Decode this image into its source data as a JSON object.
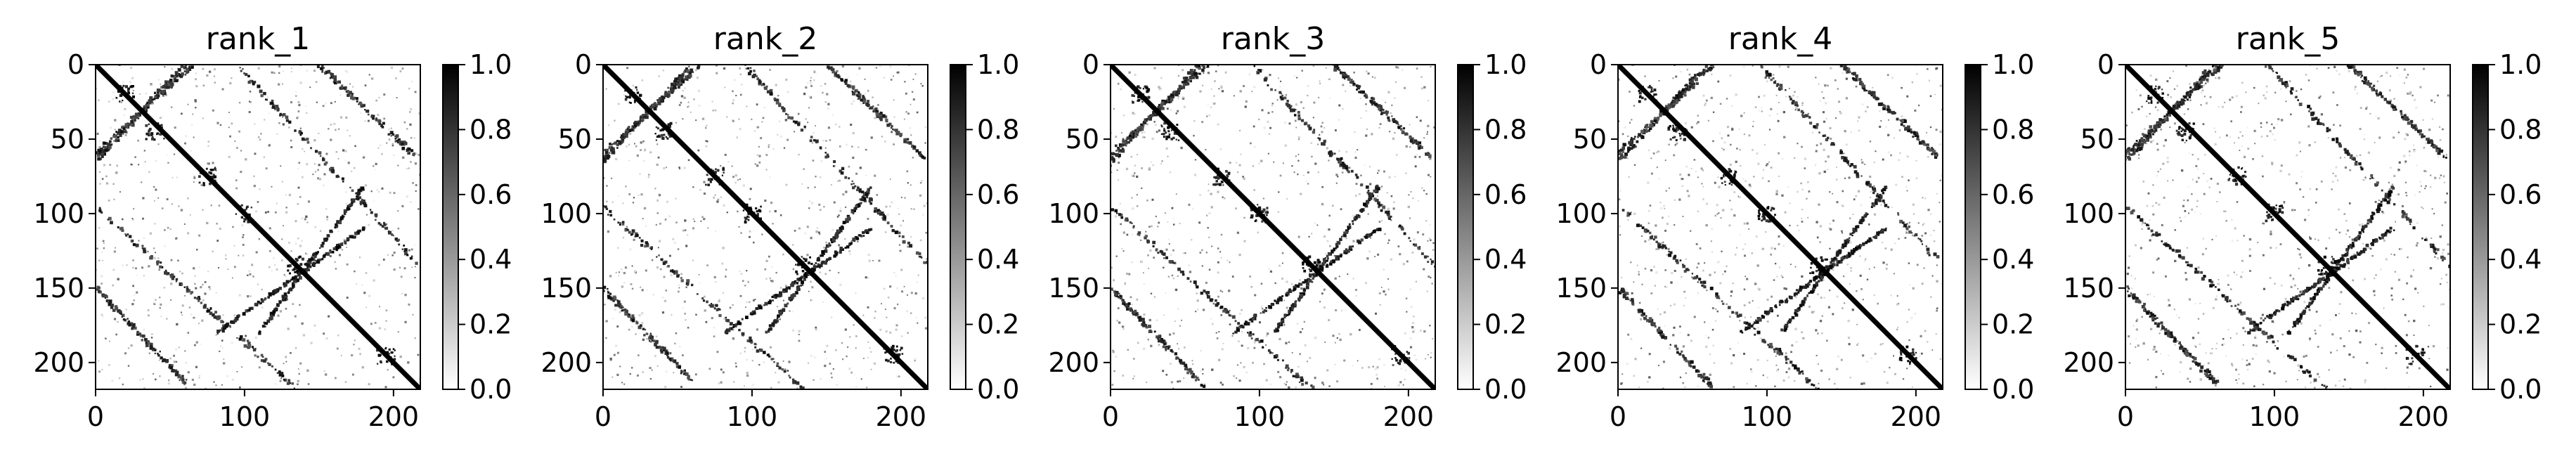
{
  "chart_data": [
    {
      "type": "heatmap",
      "title": "rank_1",
      "xlim": [
        0,
        218
      ],
      "ylim": [
        218,
        0
      ],
      "x_ticks": [
        0,
        100,
        200
      ],
      "y_ticks": [
        0,
        50,
        100,
        150,
        200
      ],
      "colorbar": {
        "min": 0.0,
        "max": 1.0,
        "ticks": [
          "0.0",
          "0.2",
          "0.4",
          "0.6",
          "0.8",
          "1.0"
        ]
      },
      "colormap": "gray_r",
      "grid": false,
      "structure": {
        "main_diagonal": {
          "from": [
            0,
            0
          ],
          "to": [
            218,
            218
          ]
        },
        "anti_diagonal_segments": [
          [
            [
              82,
              180
            ],
            [
              180,
              110
            ]
          ]
        ],
        "parallel_bands": [
          [
            [
              0,
              150
            ],
            [
              62,
              215
            ]
          ],
          [
            [
              95,
              0
            ],
            [
              218,
              135
            ]
          ],
          [
            [
              0,
              65
            ],
            [
              60,
              0
            ]
          ]
        ],
        "clusters": [
          [
            20,
            20
          ],
          [
            40,
            45
          ],
          [
            75,
            75
          ],
          [
            100,
            100
          ],
          [
            135,
            135
          ],
          [
            195,
            195
          ]
        ]
      }
    },
    {
      "type": "heatmap",
      "title": "rank_2",
      "xlim": [
        0,
        218
      ],
      "ylim": [
        218,
        0
      ],
      "x_ticks": [
        0,
        100,
        200
      ],
      "y_ticks": [
        0,
        50,
        100,
        150,
        200
      ],
      "colorbar": {
        "min": 0.0,
        "max": 1.0,
        "ticks": [
          "0.0",
          "0.2",
          "0.4",
          "0.6",
          "0.8",
          "1.0"
        ]
      },
      "colormap": "gray_r",
      "grid": false,
      "structure": {
        "main_diagonal": {
          "from": [
            0,
            0
          ],
          "to": [
            218,
            218
          ]
        },
        "anti_diagonal_segments": [
          [
            [
              82,
              180
            ],
            [
              180,
              110
            ]
          ]
        ],
        "parallel_bands": [
          [
            [
              0,
              150
            ],
            [
              62,
              215
            ]
          ],
          [
            [
              95,
              0
            ],
            [
              218,
              135
            ]
          ],
          [
            [
              0,
              65
            ],
            [
              60,
              0
            ]
          ]
        ],
        "clusters": [
          [
            20,
            20
          ],
          [
            40,
            45
          ],
          [
            75,
            75
          ],
          [
            100,
            100
          ],
          [
            135,
            135
          ],
          [
            195,
            195
          ]
        ]
      }
    },
    {
      "type": "heatmap",
      "title": "rank_3",
      "xlim": [
        0,
        218
      ],
      "ylim": [
        218,
        0
      ],
      "x_ticks": [
        0,
        100,
        200
      ],
      "y_ticks": [
        0,
        50,
        100,
        150,
        200
      ],
      "colorbar": {
        "min": 0.0,
        "max": 1.0,
        "ticks": [
          "0.0",
          "0.2",
          "0.4",
          "0.6",
          "0.8",
          "1.0"
        ]
      },
      "colormap": "gray_r",
      "grid": false,
      "structure": {
        "main_diagonal": {
          "from": [
            0,
            0
          ],
          "to": [
            218,
            218
          ]
        },
        "anti_diagonal_segments": [
          [
            [
              82,
              180
            ],
            [
              180,
              110
            ]
          ]
        ],
        "parallel_bands": [
          [
            [
              0,
              150
            ],
            [
              62,
              215
            ]
          ],
          [
            [
              95,
              0
            ],
            [
              218,
              135
            ]
          ],
          [
            [
              0,
              65
            ],
            [
              60,
              0
            ]
          ]
        ],
        "clusters": [
          [
            20,
            20
          ],
          [
            40,
            45
          ],
          [
            75,
            75
          ],
          [
            100,
            100
          ],
          [
            135,
            135
          ],
          [
            195,
            195
          ]
        ]
      }
    },
    {
      "type": "heatmap",
      "title": "rank_4",
      "xlim": [
        0,
        218
      ],
      "ylim": [
        218,
        0
      ],
      "x_ticks": [
        0,
        100,
        200
      ],
      "y_ticks": [
        0,
        50,
        100,
        150,
        200
      ],
      "colorbar": {
        "min": 0.0,
        "max": 1.0,
        "ticks": [
          "0.0",
          "0.2",
          "0.4",
          "0.6",
          "0.8",
          "1.0"
        ]
      },
      "colormap": "gray_r",
      "grid": false,
      "structure": {
        "main_diagonal": {
          "from": [
            0,
            0
          ],
          "to": [
            218,
            218
          ]
        },
        "anti_diagonal_segments": [
          [
            [
              82,
              180
            ],
            [
              180,
              110
            ]
          ]
        ],
        "parallel_bands": [
          [
            [
              0,
              150
            ],
            [
              62,
              215
            ]
          ],
          [
            [
              95,
              0
            ],
            [
              218,
              135
            ]
          ],
          [
            [
              0,
              65
            ],
            [
              60,
              0
            ]
          ]
        ],
        "clusters": [
          [
            20,
            20
          ],
          [
            40,
            45
          ],
          [
            75,
            75
          ],
          [
            100,
            100
          ],
          [
            135,
            135
          ],
          [
            195,
            195
          ]
        ]
      }
    },
    {
      "type": "heatmap",
      "title": "rank_5",
      "xlim": [
        0,
        218
      ],
      "ylim": [
        218,
        0
      ],
      "x_ticks": [
        0,
        100,
        200
      ],
      "y_ticks": [
        0,
        50,
        100,
        150,
        200
      ],
      "colorbar": {
        "min": 0.0,
        "max": 1.0,
        "ticks": [
          "0.0",
          "0.2",
          "0.4",
          "0.6",
          "0.8",
          "1.0"
        ]
      },
      "colormap": "gray_r",
      "grid": false,
      "structure": {
        "main_diagonal": {
          "from": [
            0,
            0
          ],
          "to": [
            218,
            218
          ]
        },
        "anti_diagonal_segments": [
          [
            [
              82,
              180
            ],
            [
              180,
              110
            ]
          ]
        ],
        "parallel_bands": [
          [
            [
              0,
              150
            ],
            [
              62,
              215
            ]
          ],
          [
            [
              95,
              0
            ],
            [
              218,
              135
            ]
          ],
          [
            [
              0,
              65
            ],
            [
              60,
              0
            ]
          ]
        ],
        "clusters": [
          [
            20,
            20
          ],
          [
            40,
            45
          ],
          [
            75,
            75
          ],
          [
            100,
            100
          ],
          [
            135,
            135
          ],
          [
            195,
            195
          ]
        ]
      }
    }
  ]
}
